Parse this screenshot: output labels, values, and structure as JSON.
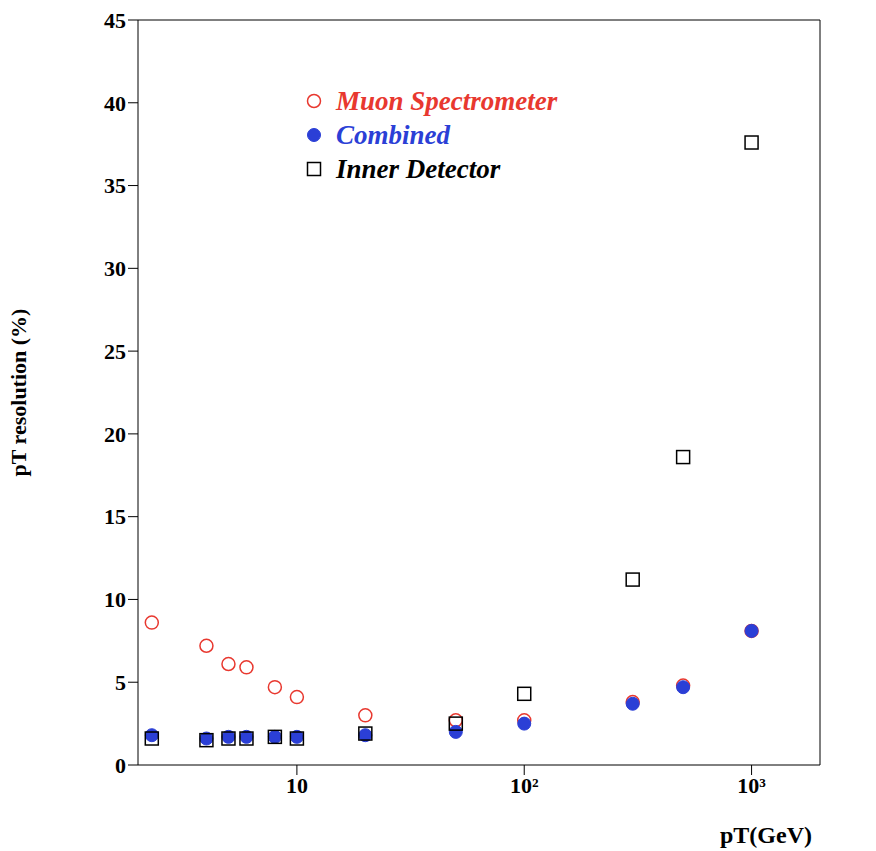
{
  "chart_data": {
    "type": "scatter",
    "x_label": "pT(GeV)",
    "y_label": "pT resolution (%)",
    "log": "x",
    "xlim": [
      2,
      2000
    ],
    "xticks": [
      10,
      {
        "value": 100,
        "label": "10²"
      },
      {
        "value": 1000,
        "label": "10³"
      }
    ],
    "ylim": [
      0,
      45
    ],
    "yticks": [
      0,
      5,
      10,
      15,
      20,
      25,
      30,
      35,
      40,
      45
    ],
    "grid": false,
    "legend": "top",
    "x": [
      2.3,
      4,
      5,
      6,
      8,
      10,
      20,
      50,
      100,
      300,
      500,
      1000
    ],
    "series": [
      {
        "name": "Muon Spectrometer",
        "color": "#e8382f",
        "marker": "circle_open",
        "values": [
          8.6,
          7.2,
          6.1,
          5.9,
          4.7,
          4.1,
          3.0,
          2.7,
          2.7,
          3.8,
          4.8,
          8.1
        ]
      },
      {
        "name": "Combined",
        "color": "#2b3fd6",
        "marker": "circle",
        "values": [
          1.8,
          1.6,
          1.7,
          1.7,
          1.7,
          1.7,
          1.8,
          2.0,
          2.5,
          3.7,
          4.7,
          8.1
        ]
      },
      {
        "name": "Inner Detector",
        "color": "#000000",
        "marker": "square_open",
        "values": [
          1.6,
          1.5,
          1.6,
          1.6,
          1.7,
          1.6,
          1.9,
          2.5,
          4.3,
          11.2,
          18.6,
          37.6
        ]
      }
    ]
  }
}
